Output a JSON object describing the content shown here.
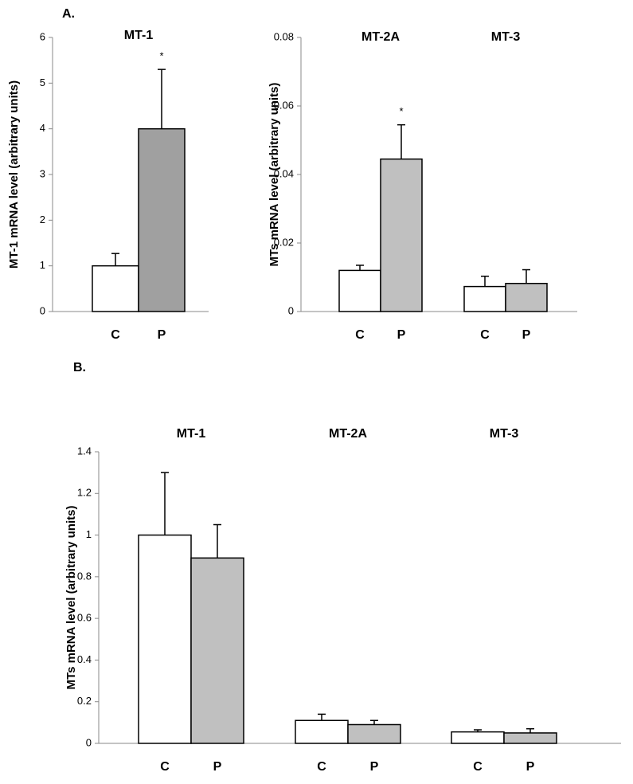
{
  "chart_data": [
    {
      "type": "bar",
      "panel_label": "A.",
      "ylabel": "MT-1 mRNA level (arbitrary units)",
      "groups": [
        "MT-1"
      ],
      "categories": [
        "C",
        "P"
      ],
      "values": [
        1,
        4
      ],
      "errors": [
        0.27,
        1.3
      ],
      "colors": [
        "#ffffff",
        "#a0a0a0"
      ],
      "annotations": [
        null,
        "*"
      ],
      "ylim": [
        0,
        6
      ],
      "yticks": [
        0,
        1,
        2,
        3,
        4,
        5,
        6
      ]
    },
    {
      "type": "bar",
      "ylabel": "MTs mRNA level (arbitrary units)",
      "groups": [
        "MT-2A",
        "MT-3"
      ],
      "categories": [
        "C",
        "P",
        "C",
        "P"
      ],
      "values": [
        0.012,
        0.0445,
        0.0073,
        0.0082
      ],
      "errors": [
        0.0015,
        0.01,
        0.003,
        0.004
      ],
      "colors": [
        "#ffffff",
        "#c0c0c0",
        "#ffffff",
        "#c0c0c0"
      ],
      "annotations": [
        null,
        "*",
        null,
        null
      ],
      "ylim": [
        0,
        0.08
      ],
      "yticks": [
        0,
        0.02,
        0.04,
        0.06,
        0.08
      ]
    },
    {
      "type": "bar",
      "panel_label": "B.",
      "ylabel": "MTs mRNA level (arbitrary units)",
      "groups": [
        "MT-1",
        "MT-2A",
        "MT-3"
      ],
      "categories": [
        "C",
        "P",
        "C",
        "P",
        "C",
        "P"
      ],
      "values": [
        1,
        0.89,
        0.11,
        0.09,
        0.055,
        0.05
      ],
      "errors": [
        0.3,
        0.16,
        0.03,
        0.02,
        0.01,
        0.02
      ],
      "colors": [
        "#ffffff",
        "#c0c0c0",
        "#ffffff",
        "#c0c0c0",
        "#ffffff",
        "#c0c0c0"
      ],
      "annotations": [
        null,
        null,
        null,
        null,
        null,
        null
      ],
      "ylim": [
        0,
        1.4
      ],
      "yticks": [
        0,
        0.2,
        0.4,
        0.6,
        0.8,
        1,
        1.2,
        1.4
      ]
    }
  ]
}
